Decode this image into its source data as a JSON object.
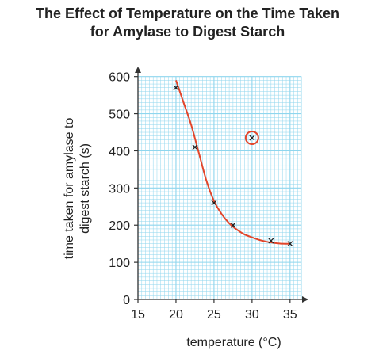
{
  "chart_data": {
    "type": "scatter",
    "title": "The Effect of Temperature on the Time Taken for Amylase to Digest Starch",
    "title_lines": [
      "The Effect of Temperature on the Time Taken",
      "for Amylase to Digest Starch"
    ],
    "xlabel": "temperature (°C)",
    "ylabel_lines": [
      "time taken for amylase to",
      "digest starch (s)"
    ],
    "xlim": [
      15,
      37
    ],
    "ylim": [
      0,
      610
    ],
    "x_ticks": [
      "15",
      "20",
      "25",
      "30",
      "35"
    ],
    "y_ticks": [
      "0",
      "100",
      "200",
      "300",
      "400",
      "500",
      "600"
    ],
    "grid": true,
    "points": [
      {
        "x": 20,
        "y": 570
      },
      {
        "x": 22.5,
        "y": 410
      },
      {
        "x": 25,
        "y": 260
      },
      {
        "x": 27.5,
        "y": 200
      },
      {
        "x": 30,
        "y": 435,
        "anomaly": true
      },
      {
        "x": 32.5,
        "y": 158
      },
      {
        "x": 35,
        "y": 150
      }
    ],
    "curve_of_best_fit": [
      [
        20,
        590
      ],
      [
        21,
        530
      ],
      [
        22,
        470
      ],
      [
        23,
        395
      ],
      [
        24,
        320
      ],
      [
        25,
        265
      ],
      [
        26,
        230
      ],
      [
        27,
        205
      ],
      [
        28,
        188
      ],
      [
        29,
        175
      ],
      [
        30,
        167
      ],
      [
        31,
        160
      ],
      [
        32,
        155
      ],
      [
        33,
        152
      ],
      [
        34,
        150
      ],
      [
        35,
        150
      ]
    ],
    "colors": {
      "grid": "#8fd6ee",
      "curve": "#e2462b",
      "anomaly_circle": "#e2462b",
      "axes": "#333333",
      "text": "#222222"
    }
  }
}
